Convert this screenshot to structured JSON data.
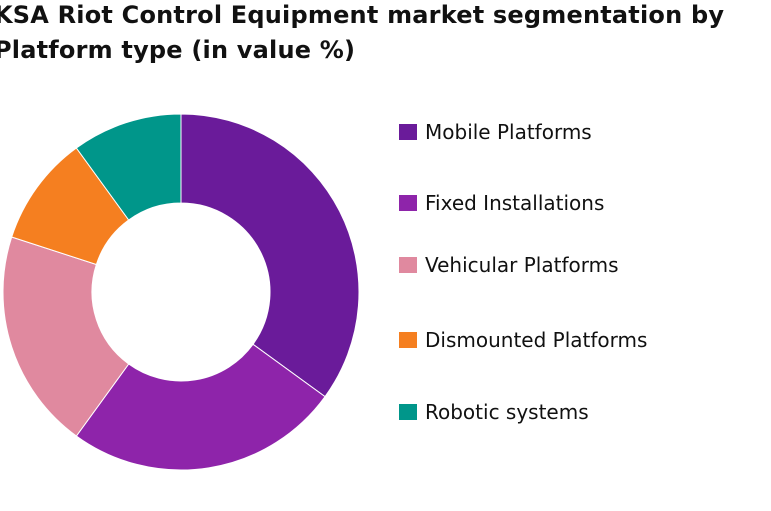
{
  "chart_data": {
    "type": "pie",
    "style": "donut",
    "title": "KSA Riot Control Equipment market segmentation by Platform type (in value %)",
    "title_lines": [
      "KSA Riot Control Equipment market segmentation by",
      "Platform type (in value %)"
    ],
    "categories": [
      "Mobile Platforms",
      "Fixed Installations",
      "Vehicular Platforms",
      "Dismounted Platforms",
      "Robotic systems"
    ],
    "values": [
      35,
      25,
      20,
      10,
      10
    ],
    "colors": [
      "#6a1b9a",
      "#8e24aa",
      "#e0899f",
      "#f57f20",
      "#00968a"
    ],
    "legend_position": "right"
  }
}
